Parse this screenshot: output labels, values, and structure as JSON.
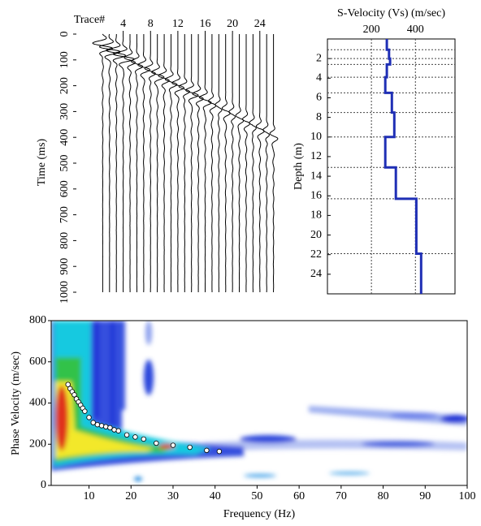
{
  "chart_data": [
    {
      "type": "seismogram",
      "x_label": "Trace#",
      "y_label": "Time (ms)",
      "x": [
        1,
        2,
        3,
        4,
        5,
        6,
        7,
        8,
        9,
        10,
        11,
        12,
        13,
        14,
        15,
        16,
        17,
        18,
        19,
        20,
        21,
        22,
        23,
        24,
        25,
        26
      ],
      "values": [
        45,
        59,
        73,
        87,
        101,
        115,
        129,
        143,
        157,
        171,
        185,
        199,
        213,
        227,
        241,
        255,
        269,
        283,
        297,
        311,
        325,
        339,
        353,
        367,
        381,
        395
      ],
      "xlim": [
        0,
        27
      ],
      "ylim": [
        0,
        1000
      ],
      "xticks": [
        4,
        8,
        12,
        16,
        20,
        24
      ],
      "yticks": [
        0,
        100,
        200,
        300,
        400,
        500,
        600,
        700,
        800,
        900,
        1000
      ],
      "color": "#000000"
    },
    {
      "type": "line",
      "title": "S-Velocity (Vs) (m/sec)",
      "y_label": "Depth (m)",
      "depth": [
        0,
        1.1,
        1.1,
        2,
        2,
        2.6,
        2.6,
        3.9,
        3.9,
        5.5,
        5.5,
        7.5,
        7.5,
        10,
        10,
        13.1,
        13.1,
        16.3,
        16.3,
        21.9,
        21.9,
        26
      ],
      "values": [
        270,
        270,
        280,
        280,
        285,
        285,
        270,
        270,
        263,
        263,
        293,
        293,
        304,
        304,
        263,
        263,
        311,
        311,
        404,
        404,
        426,
        426
      ],
      "xlim": [
        0,
        580
      ],
      "ylim": [
        0,
        26
      ],
      "xticks": [
        200,
        400
      ],
      "yticks": [
        2,
        4,
        6,
        8,
        10,
        12,
        14,
        16,
        18,
        20,
        22,
        24
      ],
      "layer_boundaries": [
        1.1,
        2,
        2.6,
        3.9,
        5.5,
        7.5,
        10,
        13.1,
        16.3,
        21.9
      ],
      "color": "#1f2fb5",
      "grid": true
    },
    {
      "type": "scatter",
      "x_label": "Frequency (Hz)",
      "y_label": "Phase Velocity (m/sec)",
      "x": [
        5,
        5.5,
        6,
        6.5,
        7,
        7.5,
        8,
        8.5,
        9,
        10,
        11,
        12,
        13,
        14,
        15,
        16,
        17,
        19,
        21,
        23,
        26,
        30,
        34,
        38,
        41
      ],
      "values": [
        490,
        470,
        455,
        440,
        420,
        405,
        390,
        375,
        360,
        330,
        305,
        295,
        290,
        285,
        280,
        270,
        265,
        245,
        235,
        225,
        205,
        195,
        185,
        170,
        165
      ],
      "xlim": [
        1,
        100
      ],
      "ylim": [
        0,
        800
      ],
      "xticks": [
        10,
        20,
        30,
        40,
        50,
        60,
        70,
        80,
        90,
        100
      ],
      "yticks": [
        0,
        200,
        400,
        600,
        800
      ],
      "color": "#ffffff"
    }
  ]
}
